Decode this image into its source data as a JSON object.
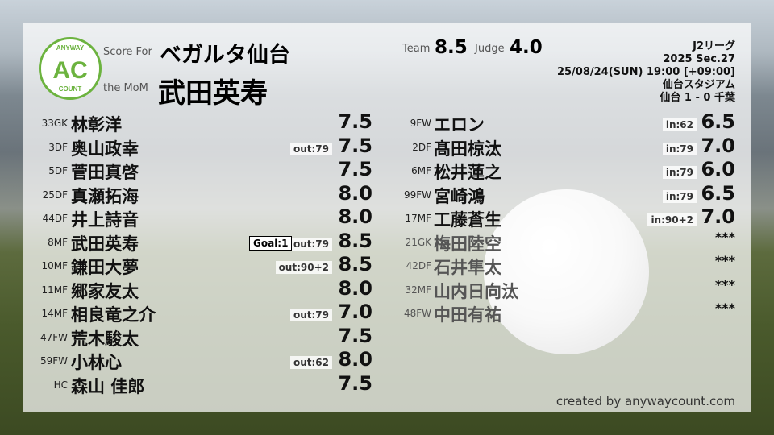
{
  "header": {
    "score_for_label": "Score For",
    "team_name": "ベガルタ仙台",
    "mom_label": "the MoM",
    "mom_name": "武田英寿",
    "team_label": "Team",
    "team_score": "8.5",
    "judge_label": "Judge",
    "judge_score": "4.0"
  },
  "logo": {
    "top": "ANYWAY",
    "center": "AC",
    "bottom": "COUNT",
    "color": "#6cb33f"
  },
  "match": {
    "league": "J2リーグ",
    "section": "2025 Sec.27",
    "datetime": "25/08/24(SUN) 19:00 [+09:00]",
    "stadium": "仙台スタジアム",
    "result": "仙台 1 - 0 千葉"
  },
  "home_players": [
    {
      "num": "33GK",
      "name": "林彰洋",
      "score": "7.5"
    },
    {
      "num": "3DF",
      "name": "奥山政幸",
      "sub": "out:79",
      "score": "7.5"
    },
    {
      "num": "5DF",
      "name": "菅田真啓",
      "score": "7.5"
    },
    {
      "num": "25DF",
      "name": "真瀬拓海",
      "score": "8.0"
    },
    {
      "num": "44DF",
      "name": "井上詩音",
      "score": "8.0"
    },
    {
      "num": "8MF",
      "name": "武田英寿",
      "goal": "Goal:1",
      "sub": "out:79",
      "score": "8.5"
    },
    {
      "num": "10MF",
      "name": "鎌田大夢",
      "sub": "out:90+2",
      "score": "8.5"
    },
    {
      "num": "11MF",
      "name": "郷家友太",
      "score": "8.0"
    },
    {
      "num": "14MF",
      "name": "相良竜之介",
      "sub": "out:79",
      "score": "7.0"
    },
    {
      "num": "47FW",
      "name": "荒木駿太",
      "score": "7.5"
    },
    {
      "num": "59FW",
      "name": "小林心",
      "sub": "out:62",
      "score": "8.0"
    },
    {
      "num": "HC",
      "name": "森山 佳郎",
      "score": "7.5"
    }
  ],
  "sub_players": [
    {
      "num": "9FW",
      "name": "エロン",
      "sub": "in:62",
      "score": "6.5"
    },
    {
      "num": "2DF",
      "name": "髙田椋汰",
      "sub": "in:79",
      "score": "7.0"
    },
    {
      "num": "6MF",
      "name": "松井蓮之",
      "sub": "in:79",
      "score": "6.0"
    },
    {
      "num": "99FW",
      "name": "宮崎鴻",
      "sub": "in:79",
      "score": "6.5"
    },
    {
      "num": "17MF",
      "name": "工藤蒼生",
      "sub": "in:90+2",
      "score": "7.0"
    },
    {
      "num": "21GK",
      "name": "梅田陸空",
      "score": "***",
      "unused": true
    },
    {
      "num": "42DF",
      "name": "石井隼太",
      "score": "***",
      "unused": true
    },
    {
      "num": "32MF",
      "name": "山内日向汰",
      "score": "***",
      "unused": true
    },
    {
      "num": "48FW",
      "name": "中田有祐",
      "score": "***",
      "unused": true
    }
  ],
  "footer": {
    "credit": "created by anywaycount.com"
  }
}
